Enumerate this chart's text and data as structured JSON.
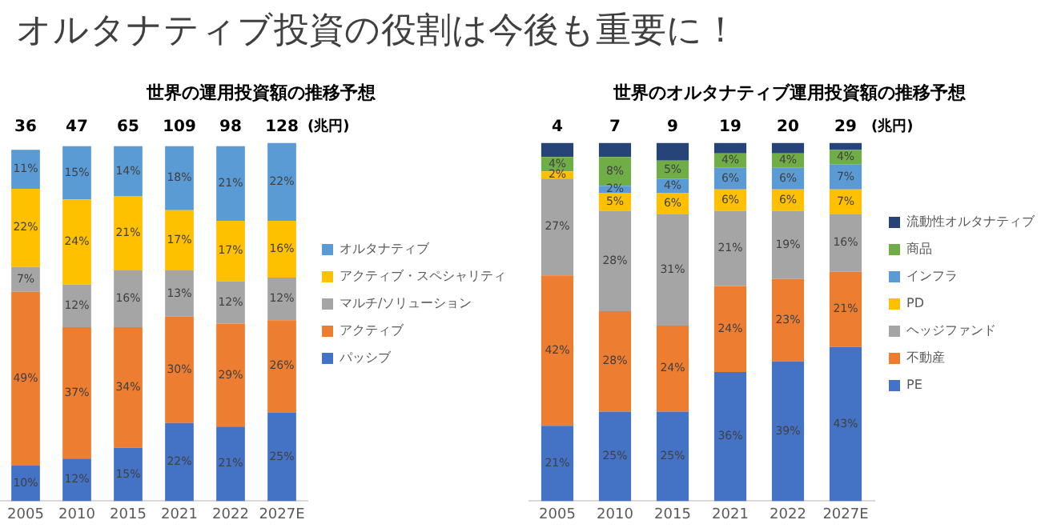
{
  "chart_data": [
    {
      "type": "other",
      "title": "オルタナティブ投資の役割は今後も重要に！"
    },
    {
      "type": "bar",
      "stacked": true,
      "title": "世界の運用投資額の推移予想",
      "categories": [
        "2005",
        "2010",
        "2015",
        "2021",
        "2022",
        "2027E"
      ],
      "tick_labels": "x",
      "legend": "right",
      "grid": false,
      "annotations": [
        "36",
        "47",
        "65",
        "109",
        "98",
        "128",
        "(兆円)"
      ],
      "series": [
        {
          "name": "パッシブ",
          "color": "#4472c4",
          "values": [
            10,
            12,
            15,
            22,
            21,
            25
          ],
          "value_labels": [
            "10%",
            "12%",
            "15%",
            "22%",
            "21%",
            "25%"
          ]
        },
        {
          "name": "アクティブ",
          "color": "#ed7d31",
          "values": [
            49,
            37,
            34,
            30,
            29,
            26
          ],
          "value_labels": [
            "49%",
            "37%",
            "34%",
            "30%",
            "29%",
            "26%"
          ]
        },
        {
          "name": "マルチ/ソリューション",
          "color": "#a5a5a5",
          "values": [
            7,
            12,
            16,
            13,
            12,
            12
          ],
          "value_labels": [
            "7%",
            "12%",
            "16%",
            "13%",
            "12%",
            "12%"
          ]
        },
        {
          "name": "アクティブ・スペシャリティ",
          "color": "#ffc000",
          "values": [
            22,
            24,
            21,
            17,
            17,
            16
          ],
          "value_labels": [
            "22%",
            "24%",
            "21%",
            "17%",
            "17%",
            "16%"
          ]
        },
        {
          "name": "オルタナティブ",
          "color": "#5b9bd5",
          "values": [
            11,
            15,
            14,
            18,
            21,
            22
          ],
          "value_labels": [
            "11%",
            "15%",
            "14%",
            "18%",
            "21%",
            "22%"
          ]
        }
      ]
    },
    {
      "type": "bar",
      "stacked": true,
      "title": "世界のオルタナティブ運用投資額の推移予想",
      "categories": [
        "2005",
        "2010",
        "2015",
        "2021",
        "2022",
        "2027E"
      ],
      "tick_labels": "x",
      "legend": "right",
      "grid": false,
      "annotations": [
        "4",
        "7",
        "9",
        "19",
        "20",
        "29",
        "(兆円)"
      ],
      "series": [
        {
          "name": "PE",
          "color": "#4472c4",
          "values": [
            21,
            25,
            25,
            36,
            39,
            43
          ],
          "value_labels": [
            "21%",
            "25%",
            "25%",
            "36%",
            "39%",
            "43%"
          ]
        },
        {
          "name": "不動産",
          "color": "#ed7d31",
          "values": [
            42,
            28,
            24,
            24,
            23,
            21
          ],
          "value_labels": [
            "42%",
            "28%",
            "24%",
            "24%",
            "23%",
            "21%"
          ]
        },
        {
          "name": "ヘッジファンド",
          "color": "#a5a5a5",
          "values": [
            27,
            28,
            31,
            21,
            19,
            16
          ],
          "value_labels": [
            "27%",
            "28%",
            "31%",
            "21%",
            "19%",
            "16%"
          ]
        },
        {
          "name": "PD",
          "color": "#ffc000",
          "values": [
            2,
            5,
            6,
            6,
            6,
            7
          ],
          "value_labels": [
            "2%",
            "5%",
            "6%",
            "6%",
            "6%",
            "7%"
          ]
        },
        {
          "name": "インフラ",
          "color": "#5b9bd5",
          "values": [
            null,
            2,
            4,
            6,
            6,
            7
          ],
          "value_labels": [
            null,
            "2%",
            "4%",
            "6%",
            "6%",
            "7%"
          ]
        },
        {
          "name": "商品",
          "color": "#70ad47",
          "values": [
            4,
            8,
            5,
            4,
            4,
            4
          ],
          "value_labels": [
            "4%",
            "8%",
            "5%",
            "4%",
            "4%",
            "4%"
          ]
        },
        {
          "name": "流動性オルタナティブ",
          "color": "#264478",
          "values": [
            4,
            4,
            5,
            3,
            3,
            2
          ],
          "value_labels": [
            null,
            null,
            null,
            null,
            null,
            null
          ]
        }
      ]
    }
  ]
}
